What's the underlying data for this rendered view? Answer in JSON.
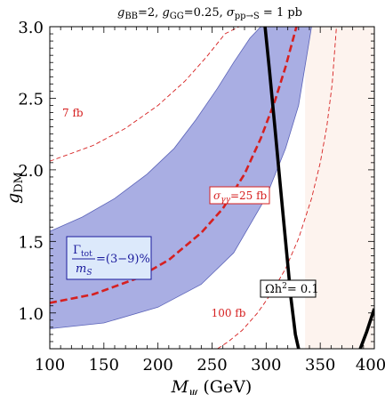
{
  "chart_data": {
    "type": "line",
    "title": "g_BB=2, g_GG=0.25, σ_pp→S = 1 pb",
    "title_parts": {
      "g1": "g",
      "g1_sub": "BB",
      "g1_val": "=2, ",
      "g2": "g",
      "g2_sub": "GG",
      "g2_val": "=0.25, ",
      "sig": "σ",
      "sig_sub": "pp→S",
      "sig_val": " = 1 pb"
    },
    "xlabel": {
      "main": "M",
      "sub": "ψ",
      "unit": " (GeV)"
    },
    "ylabel": {
      "main": "g",
      "sub": "DM"
    },
    "xlim": [
      100,
      400
    ],
    "ylim": [
      0.75,
      3.0
    ],
    "xticks": [
      "100",
      "150",
      "200",
      "250",
      "300",
      "350",
      "400"
    ],
    "yticks": [
      "1.0",
      "1.5",
      "2.0",
      "2.5",
      "3.0"
    ],
    "grid": false,
    "colors": {
      "band_fill": "#a9aee3",
      "band_edge": "#5b63b8",
      "excluded_fill": "#fdf3ee",
      "red": "#d62020",
      "relic": "#000000",
      "label_box_blue": "#dce9fb"
    },
    "series": [
      {
        "name": "σ_γγ=25 fb",
        "style": "dashed-thick-red",
        "x": [
          100,
          140,
          180,
          210,
          240,
          260,
          280,
          295,
          308,
          318,
          328
        ],
        "y": [
          1.07,
          1.13,
          1.24,
          1.37,
          1.56,
          1.73,
          1.97,
          2.22,
          2.48,
          2.72,
          3.0
        ]
      },
      {
        "name": "7 fb",
        "style": "dashed-thin-red",
        "x": [
          100,
          140,
          170,
          200,
          225,
          245,
          262,
          275,
          285
        ],
        "y": [
          2.06,
          2.17,
          2.29,
          2.45,
          2.62,
          2.79,
          2.95,
          3.0,
          3.0
        ]
      },
      {
        "name": "100 fb",
        "style": "dashed-thin-red",
        "x": [
          255,
          265,
          278,
          292,
          305,
          318,
          330,
          342,
          350,
          356,
          361,
          365
        ],
        "y": [
          0.75,
          0.8,
          0.88,
          1.0,
          1.14,
          1.31,
          1.52,
          1.8,
          2.05,
          2.3,
          2.6,
          3.0
        ]
      },
      {
        "name": "Ωh² = 0.1",
        "style": "solid-black",
        "x": [
          299,
          303,
          308,
          313,
          318,
          323,
          327,
          330
        ],
        "y": [
          3.0,
          2.7,
          2.3,
          1.9,
          1.5,
          1.1,
          0.85,
          0.75
        ]
      },
      {
        "name": "Ωh² = 0.1 (second branch)",
        "style": "solid-black",
        "x": [
          387,
          393,
          400
        ],
        "y": [
          0.75,
          0.87,
          1.03
        ]
      }
    ],
    "band_width_3_9_percent": {
      "lower": {
        "x": [
          100,
          150,
          200,
          240,
          270,
          300,
          318,
          330,
          342
        ],
        "y": [
          0.89,
          0.93,
          1.04,
          1.2,
          1.42,
          1.81,
          2.15,
          2.45,
          3.0
        ]
      },
      "upper": {
        "x": [
          100,
          130,
          160,
          190,
          215,
          235,
          255,
          270,
          285,
          295
        ],
        "y": [
          1.57,
          1.67,
          1.8,
          1.97,
          2.15,
          2.35,
          2.57,
          2.75,
          2.92,
          3.0
        ]
      }
    },
    "excluded_region": {
      "x_from": 336,
      "x_to": 400
    },
    "annotations": {
      "sevenfb": "7 fb",
      "hundredfb": "100 fb",
      "sigma_main": "σ",
      "sigma_sub": "γγ",
      "sigma_val": "=25 fb",
      "relic_main": "Ωh",
      "relic_sup": "2",
      "relic_val": "= 0.1",
      "width_num": "Γ",
      "width_num_sub": "tot",
      "width_den": "m",
      "width_den_sub": "S",
      "width_val": "=(3−9)%"
    }
  }
}
